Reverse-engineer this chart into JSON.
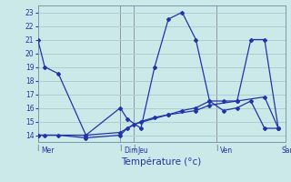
{
  "xlabel": "Température (°c)",
  "background_color": "#cce9e9",
  "grid_color": "#aacece",
  "line_color": "#2233aa",
  "ylim": [
    13.5,
    23.5
  ],
  "yticks": [
    14,
    15,
    16,
    17,
    18,
    19,
    20,
    21,
    22,
    23
  ],
  "xlim": [
    0,
    36
  ],
  "day_positions": [
    0.5,
    12.5,
    14.5,
    26.5,
    35.5
  ],
  "day_labels": [
    "Mer",
    "Dim",
    "Jeu",
    "Ven",
    "Sam"
  ],
  "vline_positions": [
    0,
    12,
    14,
    26,
    36
  ],
  "series_max": {
    "x": [
      0,
      1,
      3,
      7,
      12,
      13,
      15,
      17,
      19,
      21,
      23,
      25,
      27,
      29,
      31,
      33,
      35
    ],
    "y": [
      21,
      19,
      18.5,
      14,
      16,
      15.2,
      14.5,
      19.0,
      22.5,
      23.0,
      21.0,
      16.5,
      16.5,
      16.5,
      21.0,
      21.0,
      14.5
    ]
  },
  "series_min": {
    "x": [
      0,
      1,
      3,
      7,
      12,
      13,
      15,
      17,
      19,
      21,
      23,
      25,
      27,
      29,
      31,
      33,
      35
    ],
    "y": [
      14,
      14,
      14,
      13.8,
      14.0,
      14.5,
      15.0,
      15.3,
      15.5,
      15.8,
      16.0,
      16.5,
      15.8,
      16.0,
      16.5,
      14.5,
      14.5
    ]
  },
  "series_trend": {
    "x": [
      0,
      7,
      12,
      14,
      19,
      23,
      25,
      29,
      33,
      35
    ],
    "y": [
      14.0,
      14.0,
      14.2,
      14.8,
      15.5,
      15.8,
      16.2,
      16.5,
      16.8,
      14.5
    ]
  }
}
